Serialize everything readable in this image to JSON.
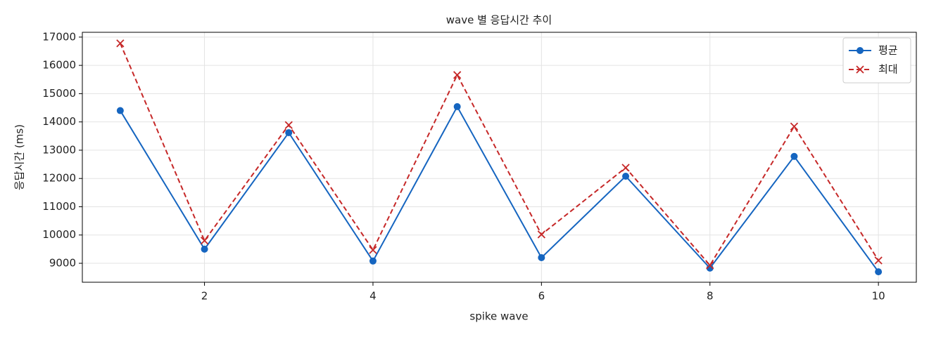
{
  "chart_data": {
    "type": "line",
    "title": "wave 별 응답시간 추이",
    "x_label": "spike wave",
    "y_label": "응답시간 (ms)",
    "x": [
      1,
      2,
      3,
      4,
      5,
      6,
      7,
      8,
      9,
      10
    ],
    "series": [
      {
        "name": "평균",
        "color": "#1565c0",
        "marker": "circle",
        "dash": "solid",
        "values": [
          14400,
          9500,
          13620,
          9080,
          14540,
          9200,
          12080,
          8830,
          12780,
          8700
        ]
      },
      {
        "name": "최대",
        "color": "#c62828",
        "marker": "x",
        "dash": "dashed",
        "values": [
          16780,
          9800,
          13890,
          9470,
          15660,
          10020,
          12380,
          8930,
          13840,
          9100
        ]
      }
    ],
    "xlim": [
      0.55,
      10.45
    ],
    "ylim": [
      8330,
      17170
    ],
    "xticks": [
      2,
      4,
      6,
      8,
      10
    ],
    "yticks": [
      9000,
      10000,
      11000,
      12000,
      13000,
      14000,
      15000,
      16000,
      17000
    ],
    "grid": true,
    "legend": "upper right"
  }
}
